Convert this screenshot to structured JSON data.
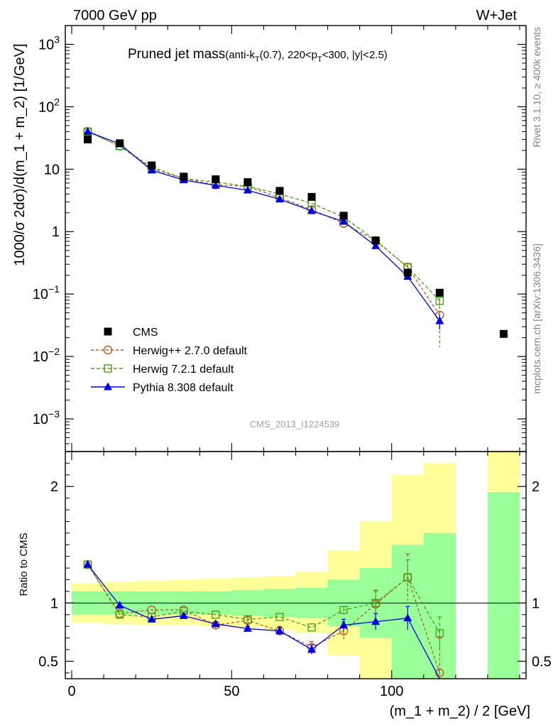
{
  "header": {
    "left": "7000 GeV pp",
    "right": "W+Jet"
  },
  "title": {
    "main": "Pruned jet mass",
    "anti": "(anti-k",
    "sub_t": "T",
    "cuts_a": "(0.7), 220<p",
    "sub_t2": "T",
    "cuts_b": "<300, |y|<2.5)"
  },
  "side_labels": {
    "rivet": "Rivet 3.1.10, ≥ 400k events",
    "mcplots": "mcplots.cern.ch [arXiv:1306.3436]"
  },
  "watermark": "CMS_2013_I1224539",
  "chart_data": [
    {
      "type": "scatter",
      "panel": "main",
      "ylabel": "1000/σ 2dσ)/d(m_1 + m_2) [1/GeV]",
      "yscale": "log",
      "ylim": [
        0.0003,
        2000
      ],
      "xlim": [
        -2,
        142
      ],
      "y_ticks": [
        {
          "value": 1000,
          "mantissa": "10",
          "exp": "3"
        },
        {
          "value": 100,
          "mantissa": "10",
          "exp": "2"
        },
        {
          "value": 10,
          "mantissa": "10",
          "exp": ""
        },
        {
          "value": 1,
          "mantissa": "1",
          "exp": ""
        },
        {
          "value": 0.1,
          "mantissa": "10",
          "exp": "−1"
        },
        {
          "value": 0.01,
          "mantissa": "10",
          "exp": "−2"
        },
        {
          "value": 0.001,
          "mantissa": "10",
          "exp": "−3"
        }
      ],
      "series": [
        {
          "name": "CMS",
          "style": "data",
          "color": "#000000",
          "x": [
            5,
            15,
            25,
            35,
            45,
            55,
            65,
            75,
            85,
            95,
            105,
            115,
            135
          ],
          "y": [
            30,
            26,
            11.5,
            7.6,
            6.9,
            6.2,
            4.5,
            3.6,
            1.8,
            0.72,
            0.22,
            0.105,
            0.023
          ]
        },
        {
          "name": "Herwig++ 2.7.0 default",
          "style": "circle",
          "color": "#b35a1f",
          "x": [
            5,
            15,
            25,
            35,
            45,
            55,
            65,
            75,
            85,
            95,
            105,
            115
          ],
          "y": [
            40,
            23.5,
            10.8,
            7.1,
            5.6,
            5.3,
            3.5,
            2.25,
            1.35,
            0.72,
            0.27,
            0.046
          ],
          "err": [
            0,
            0,
            0,
            0,
            0,
            0,
            0,
            0,
            0,
            0,
            0.04,
            0.032
          ]
        },
        {
          "name": "Herwig 7.2.1 default",
          "style": "square",
          "color": "#4f9f1f",
          "x": [
            5,
            15,
            25,
            35,
            45,
            55,
            65,
            75,
            85,
            95,
            105,
            115
          ],
          "y": [
            40,
            23.5,
            10.2,
            7.1,
            6.2,
            5.3,
            4.0,
            2.85,
            1.7,
            0.72,
            0.27,
            0.078
          ],
          "err": [
            0,
            0,
            0,
            0,
            0,
            0,
            0,
            0,
            0,
            0,
            0.04,
            0.012
          ]
        },
        {
          "name": "Pythia 8.308 default",
          "style": "triangle",
          "color": "#0000e0",
          "x": [
            5,
            15,
            25,
            35,
            45,
            55,
            65,
            75,
            85,
            95,
            105,
            115
          ],
          "y": [
            40,
            25.5,
            9.6,
            6.7,
            5.5,
            4.6,
            3.3,
            2.15,
            1.45,
            0.59,
            0.19,
            0.037
          ],
          "err": [
            0,
            0,
            0,
            0,
            0,
            0,
            0,
            0,
            0,
            0,
            0.02,
            0.01
          ]
        }
      ]
    },
    {
      "type": "scatter",
      "panel": "ratio",
      "ylabel": "Ratio to CMS",
      "xlabel": "(m_1 + m_2) / 2 [GeV]",
      "ylim": [
        0.35,
        2.3
      ],
      "xlim": [
        -2,
        142
      ],
      "x_ticks": [
        0,
        50,
        100
      ],
      "y_ticks": [
        0.5,
        1,
        2
      ],
      "reference_line": 1,
      "bands": {
        "bin_edges": [
          [
            0,
            10
          ],
          [
            10,
            20
          ],
          [
            20,
            30
          ],
          [
            30,
            40
          ],
          [
            40,
            50
          ],
          [
            50,
            60
          ],
          [
            60,
            70
          ],
          [
            70,
            80
          ],
          [
            80,
            90
          ],
          [
            90,
            100
          ],
          [
            100,
            110
          ],
          [
            110,
            120
          ],
          [
            130,
            140
          ]
        ],
        "inner": [
          [
            0.9,
            1.1
          ],
          [
            0.9,
            1.1
          ],
          [
            0.9,
            1.1
          ],
          [
            0.9,
            1.1
          ],
          [
            0.9,
            1.1
          ],
          [
            0.89,
            1.11
          ],
          [
            0.88,
            1.12
          ],
          [
            0.87,
            1.13
          ],
          [
            0.8,
            1.2
          ],
          [
            0.7,
            1.3
          ],
          [
            0.3,
            1.5
          ],
          [
            0.3,
            1.6
          ],
          [
            0.3,
            1.95
          ]
        ],
        "outer": [
          [
            0.83,
            1.17
          ],
          [
            0.82,
            1.18
          ],
          [
            0.81,
            1.19
          ],
          [
            0.81,
            1.2
          ],
          [
            0.8,
            1.21
          ],
          [
            0.79,
            1.22
          ],
          [
            0.77,
            1.23
          ],
          [
            0.74,
            1.27
          ],
          [
            0.55,
            1.45
          ],
          [
            0.3,
            1.7
          ],
          [
            0.3,
            2.1
          ],
          [
            0.3,
            2.2
          ],
          [
            0.3,
            2.3
          ]
        ],
        "inner_color": "#99ff99",
        "outer_color": "#ffff99"
      },
      "series": [
        {
          "name": "Herwig++ 2.7.0 default",
          "style": "circle",
          "color": "#b35a1f",
          "x": [
            5,
            15,
            25,
            35,
            45,
            55,
            65,
            75,
            85,
            95,
            105,
            115
          ],
          "y": [
            1.33,
            0.91,
            0.94,
            0.94,
            0.81,
            0.85,
            0.76,
            0.62,
            0.76,
            0.99,
            1.22,
            0.4
          ],
          "err": [
            0,
            0,
            0,
            0,
            0.03,
            0.03,
            0.04,
            0.05,
            0.08,
            0.12,
            0.2,
            0.3
          ]
        },
        {
          "name": "Herwig 7.2.1 default",
          "style": "square",
          "color": "#4f9f1f",
          "x": [
            5,
            15,
            25,
            35,
            45,
            55,
            65,
            75,
            85,
            95,
            105,
            115
          ],
          "y": [
            1.33,
            0.9,
            0.88,
            0.93,
            0.9,
            0.86,
            0.88,
            0.79,
            0.94,
            1.0,
            1.22,
            0.74
          ],
          "err": [
            0,
            0,
            0,
            0,
            0,
            0,
            0,
            0,
            0.03,
            0.1,
            0.15,
            0.14
          ]
        },
        {
          "name": "Pythia 8.308 default",
          "style": "triangle",
          "color": "#0000e0",
          "x": [
            5,
            15,
            25,
            35,
            45,
            55,
            65,
            75,
            85,
            95,
            105,
            115
          ],
          "y": [
            1.33,
            0.98,
            0.86,
            0.89,
            0.82,
            0.78,
            0.76,
            0.6,
            0.81,
            0.84,
            0.87,
            0.35
          ],
          "err": [
            0,
            0,
            0,
            0,
            0.02,
            0.02,
            0.03,
            0.04,
            0.05,
            0.07,
            0.1,
            0
          ]
        }
      ]
    }
  ]
}
